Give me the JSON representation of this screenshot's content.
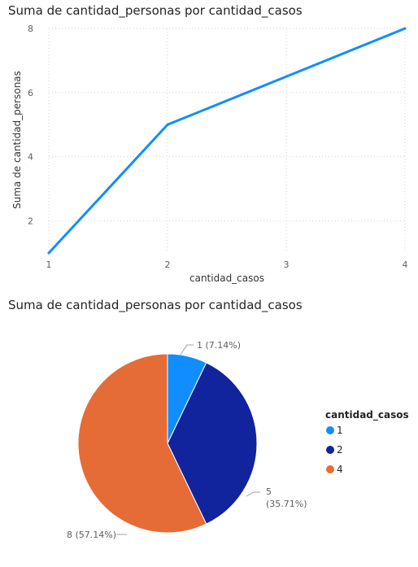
{
  "chart_data": [
    {
      "type": "line",
      "title": "Suma de cantidad_personas por cantidad_casos",
      "xlabel": "cantidad_casos",
      "ylabel": "Suma de cantidad_personas",
      "x": [
        1,
        2,
        3,
        4
      ],
      "x_ticks": [
        "1",
        "2",
        "3",
        "4"
      ],
      "y_ticks": [
        "2",
        "4",
        "6",
        "8"
      ],
      "ylim": [
        1,
        8
      ],
      "series": [
        {
          "values": [
            1,
            5,
            6.5,
            8
          ],
          "color": "#118DFF"
        }
      ],
      "grid": true
    },
    {
      "type": "pie",
      "title": "Suma de cantidad_personas por cantidad_casos",
      "legend_title": "cantidad_casos",
      "legend_position": "right",
      "slices": [
        {
          "category": "1",
          "value": 1,
          "label": "1 (7.14%)",
          "color": "#118DFF"
        },
        {
          "category": "2",
          "value": 5,
          "label_value": "5",
          "label_pct": "(35.71%)",
          "color": "#12239E"
        },
        {
          "category": "4",
          "value": 8,
          "label": "8 (57.14%)",
          "color": "#E66C37"
        }
      ]
    }
  ]
}
